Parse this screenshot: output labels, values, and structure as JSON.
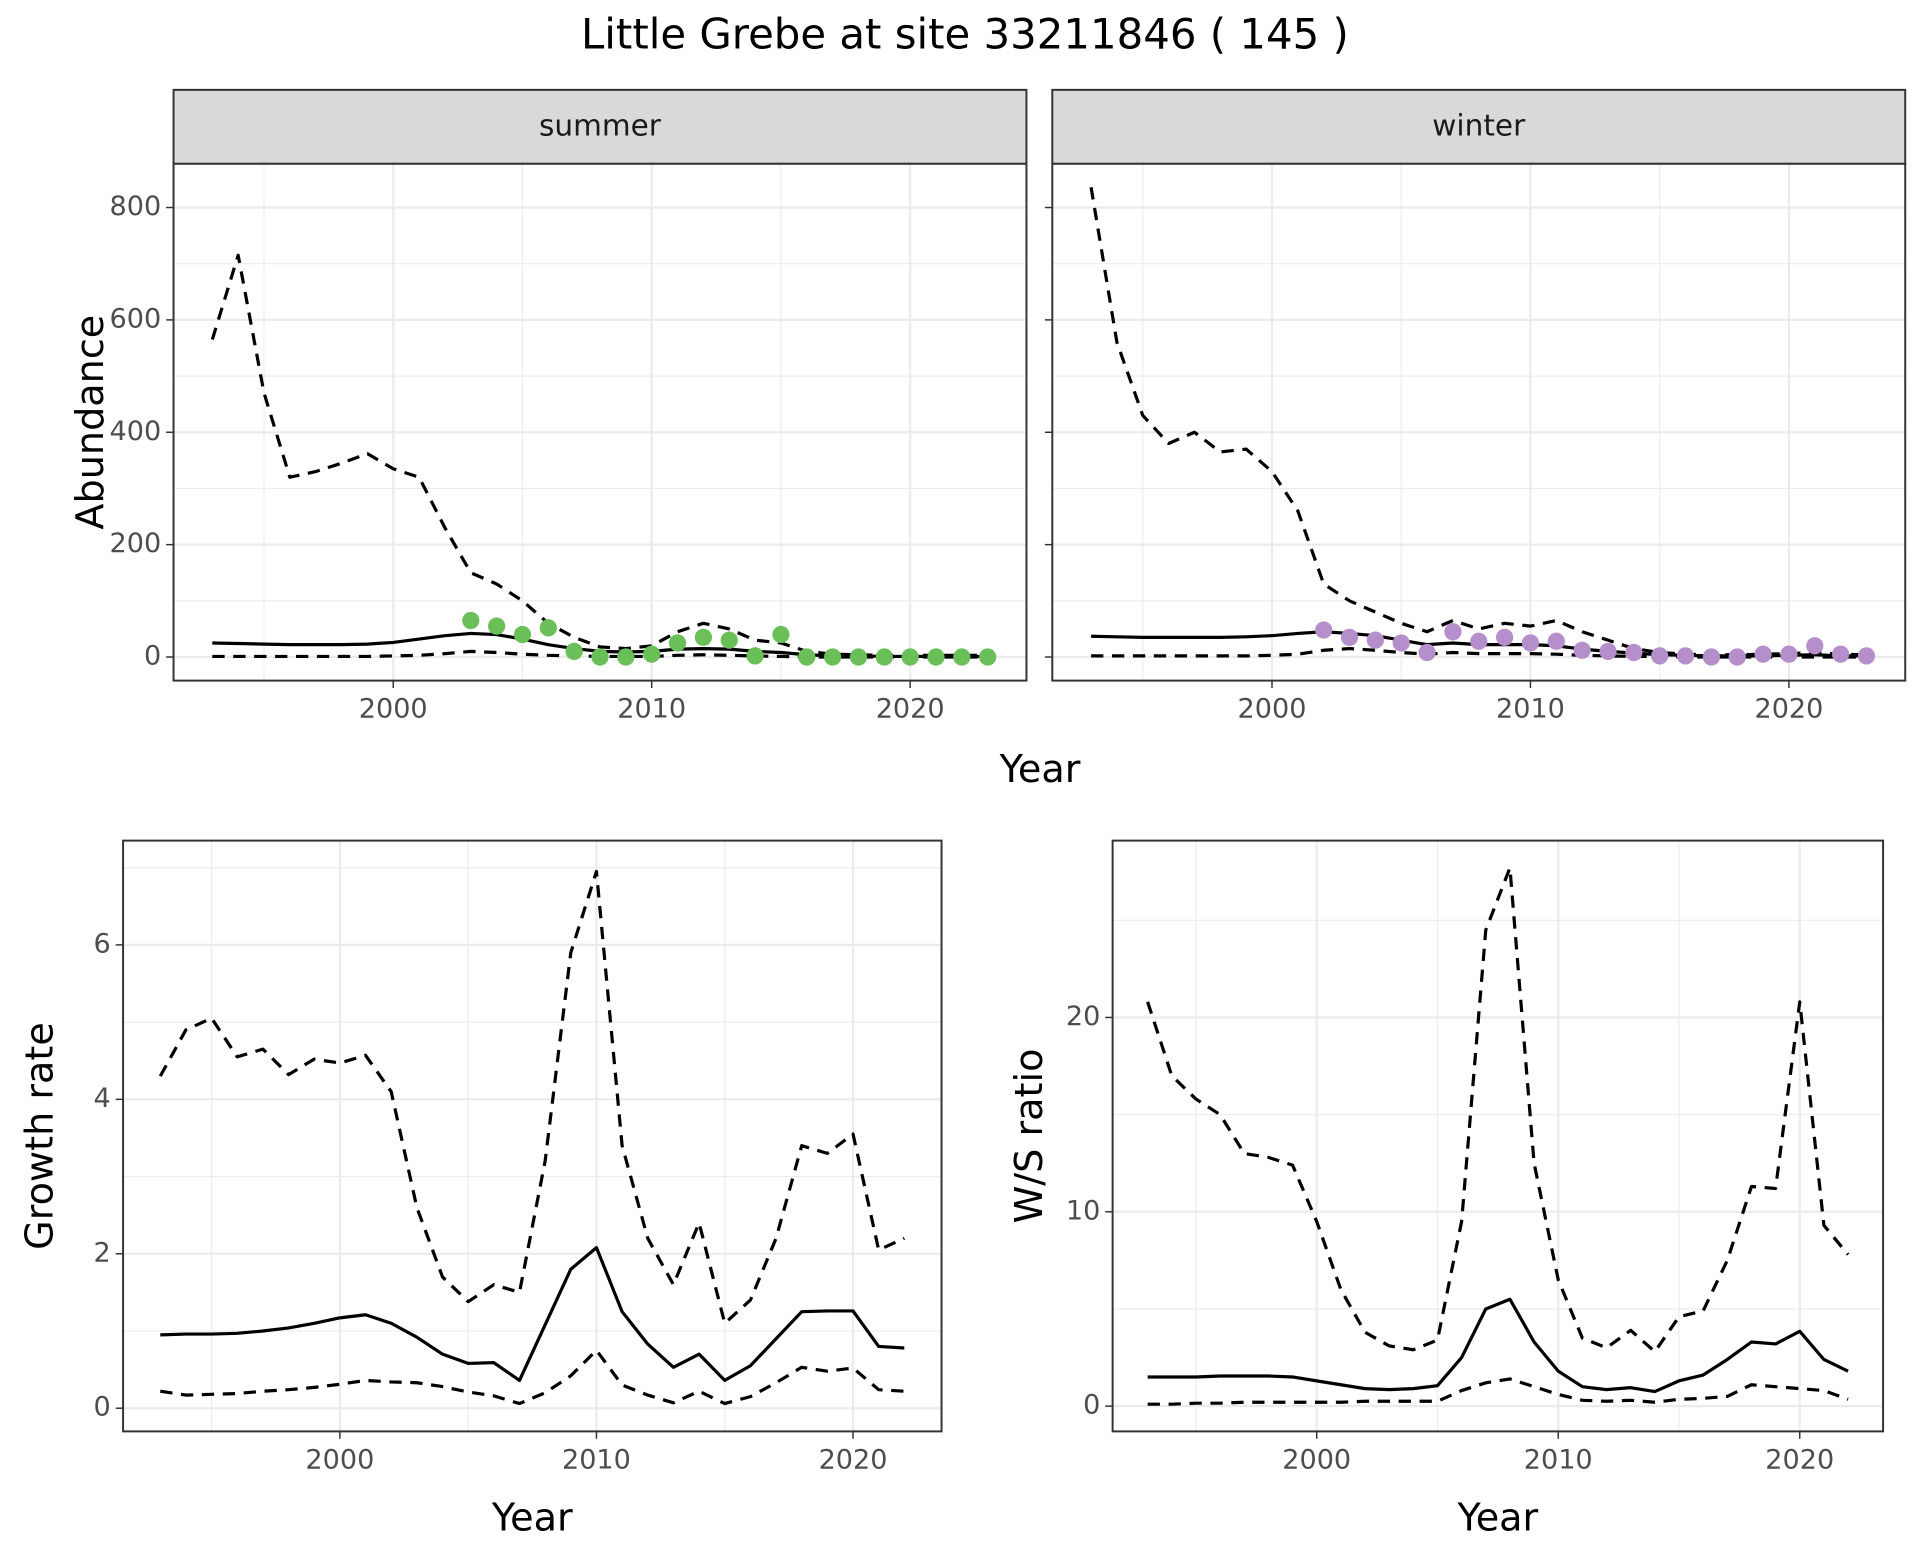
{
  "title": "Little Grebe at site 33211846 ( 145 )",
  "top_xlabel": "Year",
  "chart_data": [
    {
      "type": "line",
      "strip": "summer",
      "ylabel": "Abundance",
      "xlim": [
        1991.5,
        2024.5
      ],
      "xticks": [
        2000,
        2010,
        2020
      ],
      "ylim": [
        -42,
        878
      ],
      "yticks": [
        0,
        200,
        400,
        600,
        800
      ],
      "show_ytick_labels": true,
      "grid": true,
      "x": [
        1993,
        1994,
        1995,
        1996,
        1997,
        1998,
        1999,
        2000,
        2001,
        2002,
        2003,
        2004,
        2005,
        2006,
        2007,
        2008,
        2009,
        2010,
        2011,
        2012,
        2013,
        2014,
        2015,
        2016,
        2017,
        2018,
        2019,
        2020,
        2021,
        2022,
        2023
      ],
      "series": [
        {
          "style": "dashed",
          "color": "#000000",
          "values": [
            565,
            715,
            470,
            320,
            330,
            345,
            362,
            335,
            320,
            230,
            150,
            130,
            100,
            60,
            35,
            18,
            15,
            20,
            45,
            60,
            50,
            30,
            25,
            10,
            5,
            4,
            3,
            3,
            3,
            3,
            3
          ]
        },
        {
          "style": "solid",
          "color": "#000000",
          "values": [
            25,
            24,
            23,
            22,
            22,
            22,
            23,
            26,
            32,
            38,
            42,
            40,
            32,
            22,
            15,
            10,
            9,
            10,
            14,
            15,
            14,
            10,
            8,
            4,
            2,
            2,
            1,
            1,
            1,
            1,
            1
          ]
        },
        {
          "style": "dashed",
          "color": "#000000",
          "values": [
            1,
            1,
            1,
            1,
            1,
            1,
            1,
            2,
            3,
            6,
            10,
            8,
            5,
            3,
            2,
            1,
            1,
            1,
            3,
            4,
            3,
            2,
            1,
            0,
            0,
            0,
            0,
            0,
            0,
            0,
            0
          ]
        },
        {
          "style": "points",
          "color": "#6abf59",
          "x": [
            2003,
            2004,
            2005,
            2006,
            2007,
            2008,
            2009,
            2010,
            2011,
            2012,
            2013,
            2014,
            2015,
            2016,
            2017,
            2018,
            2019,
            2020,
            2021,
            2022,
            2023
          ],
          "values": [
            65,
            55,
            40,
            52,
            10,
            0,
            0,
            5,
            25,
            35,
            30,
            2,
            40,
            0,
            0,
            0,
            0,
            0,
            0,
            0,
            0
          ]
        }
      ]
    },
    {
      "type": "line",
      "strip": "winter",
      "xlim": [
        1991.5,
        2024.5
      ],
      "xticks": [
        2000,
        2010,
        2020
      ],
      "ylim": [
        -42,
        878
      ],
      "yticks": [
        0,
        200,
        400,
        600,
        800
      ],
      "show_ytick_labels": false,
      "grid": true,
      "x": [
        1993,
        1994,
        1995,
        1996,
        1997,
        1998,
        1999,
        2000,
        2001,
        2002,
        2003,
        2004,
        2005,
        2006,
        2007,
        2008,
        2009,
        2010,
        2011,
        2012,
        2013,
        2014,
        2015,
        2016,
        2017,
        2018,
        2019,
        2020,
        2021,
        2022,
        2023
      ],
      "series": [
        {
          "style": "dashed",
          "color": "#000000",
          "values": [
            836,
            560,
            430,
            380,
            400,
            365,
            370,
            330,
            260,
            130,
            100,
            80,
            60,
            45,
            65,
            50,
            60,
            55,
            65,
            45,
            30,
            15,
            8,
            5,
            4,
            4,
            5,
            6,
            8,
            5,
            4
          ]
        },
        {
          "style": "solid",
          "color": "#000000",
          "values": [
            37,
            36,
            35,
            35,
            35,
            35,
            36,
            38,
            42,
            45,
            42,
            38,
            30,
            22,
            25,
            22,
            22,
            22,
            20,
            14,
            10,
            7,
            4,
            3,
            2,
            2,
            2,
            3,
            4,
            2,
            2
          ]
        },
        {
          "style": "dashed",
          "color": "#000000",
          "values": [
            2,
            2,
            2,
            2,
            2,
            2,
            2,
            3,
            5,
            12,
            15,
            12,
            8,
            5,
            8,
            6,
            6,
            6,
            5,
            3,
            2,
            1,
            1,
            0,
            0,
            0,
            0,
            0,
            0,
            0,
            0
          ]
        },
        {
          "style": "points",
          "color": "#b48fcb",
          "x": [
            2002,
            2003,
            2004,
            2005,
            2006,
            2007,
            2008,
            2009,
            2010,
            2011,
            2012,
            2013,
            2014,
            2015,
            2016,
            2017,
            2018,
            2019,
            2020,
            2021,
            2022,
            2023
          ],
          "values": [
            48,
            35,
            30,
            25,
            8,
            45,
            28,
            35,
            25,
            28,
            12,
            10,
            8,
            2,
            2,
            0,
            0,
            5,
            5,
            20,
            5,
            2
          ]
        }
      ]
    },
    {
      "type": "line",
      "ylabel": "Growth rate",
      "xlabel": "Year",
      "xlim": [
        1991.55,
        2023.45
      ],
      "xticks": [
        2000,
        2010,
        2020
      ],
      "ylim": [
        -0.3,
        7.35
      ],
      "yticks": [
        0,
        2,
        4,
        6
      ],
      "show_ytick_labels": true,
      "grid": true,
      "x": [
        1993,
        1994,
        1995,
        1996,
        1997,
        1998,
        1999,
        2000,
        2001,
        2002,
        2003,
        2004,
        2005,
        2006,
        2007,
        2008,
        2009,
        2010,
        2011,
        2012,
        2013,
        2014,
        2015,
        2016,
        2017,
        2018,
        2019,
        2020,
        2021,
        2022
      ],
      "series": [
        {
          "style": "dashed",
          "color": "#000000",
          "values": [
            4.3,
            4.9,
            5.05,
            4.55,
            4.65,
            4.32,
            4.52,
            4.47,
            4.57,
            4.1,
            2.6,
            1.7,
            1.38,
            1.6,
            1.5,
            3.2,
            5.9,
            6.95,
            3.4,
            2.2,
            1.6,
            2.4,
            1.1,
            1.4,
            2.2,
            3.4,
            3.3,
            3.55,
            2.05,
            2.2
          ]
        },
        {
          "style": "solid",
          "color": "#000000",
          "values": [
            0.95,
            0.96,
            0.96,
            0.97,
            1.0,
            1.04,
            1.1,
            1.17,
            1.21,
            1.1,
            0.92,
            0.7,
            0.58,
            0.59,
            0.36,
            1.08,
            1.8,
            2.08,
            1.25,
            0.83,
            0.53,
            0.7,
            0.36,
            0.55,
            0.9,
            1.25,
            1.26,
            1.26,
            0.8,
            0.78
          ]
        },
        {
          "style": "dashed",
          "color": "#000000",
          "values": [
            0.22,
            0.17,
            0.18,
            0.19,
            0.22,
            0.24,
            0.27,
            0.31,
            0.36,
            0.34,
            0.33,
            0.28,
            0.21,
            0.16,
            0.06,
            0.2,
            0.42,
            0.75,
            0.3,
            0.17,
            0.07,
            0.22,
            0.06,
            0.15,
            0.33,
            0.53,
            0.48,
            0.52,
            0.24,
            0.22
          ]
        }
      ]
    },
    {
      "type": "line",
      "ylabel": "W/S ratio",
      "xlabel": "Year",
      "xlim": [
        1991.55,
        2023.45
      ],
      "xticks": [
        2000,
        2010,
        2020
      ],
      "ylim": [
        -1.3,
        29.1
      ],
      "yticks": [
        0,
        10,
        20
      ],
      "show_ytick_labels": true,
      "grid": true,
      "x": [
        1993,
        1994,
        1995,
        1996,
        1997,
        1998,
        1999,
        2000,
        2001,
        2002,
        2003,
        2004,
        2005,
        2006,
        2007,
        2008,
        2009,
        2010,
        2011,
        2012,
        2013,
        2014,
        2015,
        2016,
        2017,
        2018,
        2019,
        2020,
        2021,
        2022
      ],
      "series": [
        {
          "style": "dashed",
          "color": "#000000",
          "values": [
            20.8,
            17,
            15.8,
            15,
            13,
            12.8,
            12.4,
            9.5,
            6,
            3.8,
            3.1,
            2.9,
            3.4,
            9.5,
            24.5,
            27.7,
            12.5,
            6.5,
            3.5,
            3,
            3.9,
            2.8,
            4.6,
            4.9,
            7.5,
            11.3,
            11.2,
            20.8,
            9.3,
            7.8
          ]
        },
        {
          "style": "solid",
          "color": "#000000",
          "values": [
            1.5,
            1.5,
            1.5,
            1.55,
            1.55,
            1.55,
            1.5,
            1.3,
            1.1,
            0.9,
            0.85,
            0.9,
            1.05,
            2.5,
            5.0,
            5.5,
            3.3,
            1.8,
            1.0,
            0.85,
            0.95,
            0.75,
            1.3,
            1.6,
            2.4,
            3.3,
            3.2,
            3.85,
            2.4,
            1.8
          ]
        },
        {
          "style": "dashed",
          "color": "#000000",
          "values": [
            0.1,
            0.1,
            0.15,
            0.15,
            0.2,
            0.2,
            0.2,
            0.2,
            0.2,
            0.25,
            0.25,
            0.25,
            0.25,
            0.8,
            1.2,
            1.4,
            1.0,
            0.6,
            0.3,
            0.25,
            0.3,
            0.2,
            0.35,
            0.4,
            0.5,
            1.1,
            1.0,
            0.9,
            0.8,
            0.35
          ]
        }
      ]
    }
  ]
}
